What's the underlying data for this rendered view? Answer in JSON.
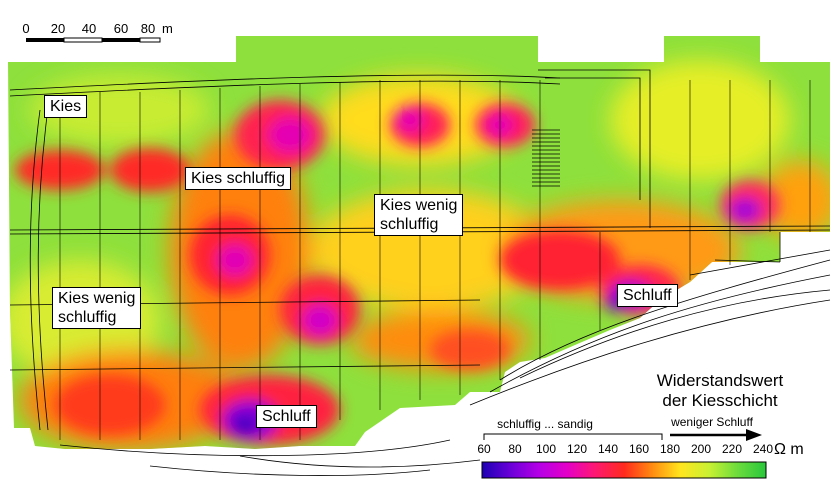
{
  "scale_bar": {
    "ticks": [
      "0",
      "20",
      "40",
      "60",
      "80"
    ],
    "unit": "m"
  },
  "zone_labels": {
    "kies": "Kies",
    "kies_schluffig": "Kies schluffig",
    "kies_wenig_schluffig_right_line1": "Kies wenig",
    "kies_wenig_schluffig_right_line2": "schluffig",
    "kies_wenig_schluffig_left_line1": "Kies wenig",
    "kies_wenig_schluffig_left_line2": "schluffig",
    "schluff_right": "Schluff",
    "schluff_bottom": "Schluff"
  },
  "legend": {
    "title_line1": "Widerstandswert",
    "title_line2": "der Kiesschicht",
    "range_label": "schluffig ... sandig",
    "arrow_label": "weniger Schluff",
    "values": [
      "60",
      "80",
      "100",
      "120",
      "140",
      "160",
      "180",
      "200",
      "220",
      "240"
    ],
    "unit": "Ω m",
    "colors": [
      "#1c00b4",
      "#6a00d8",
      "#b400e6",
      "#e400c8",
      "#ff1870",
      "#ff2a1e",
      "#ff8c10",
      "#ffe61e",
      "#c8f032",
      "#6cdc3c",
      "#28c83c"
    ]
  }
}
